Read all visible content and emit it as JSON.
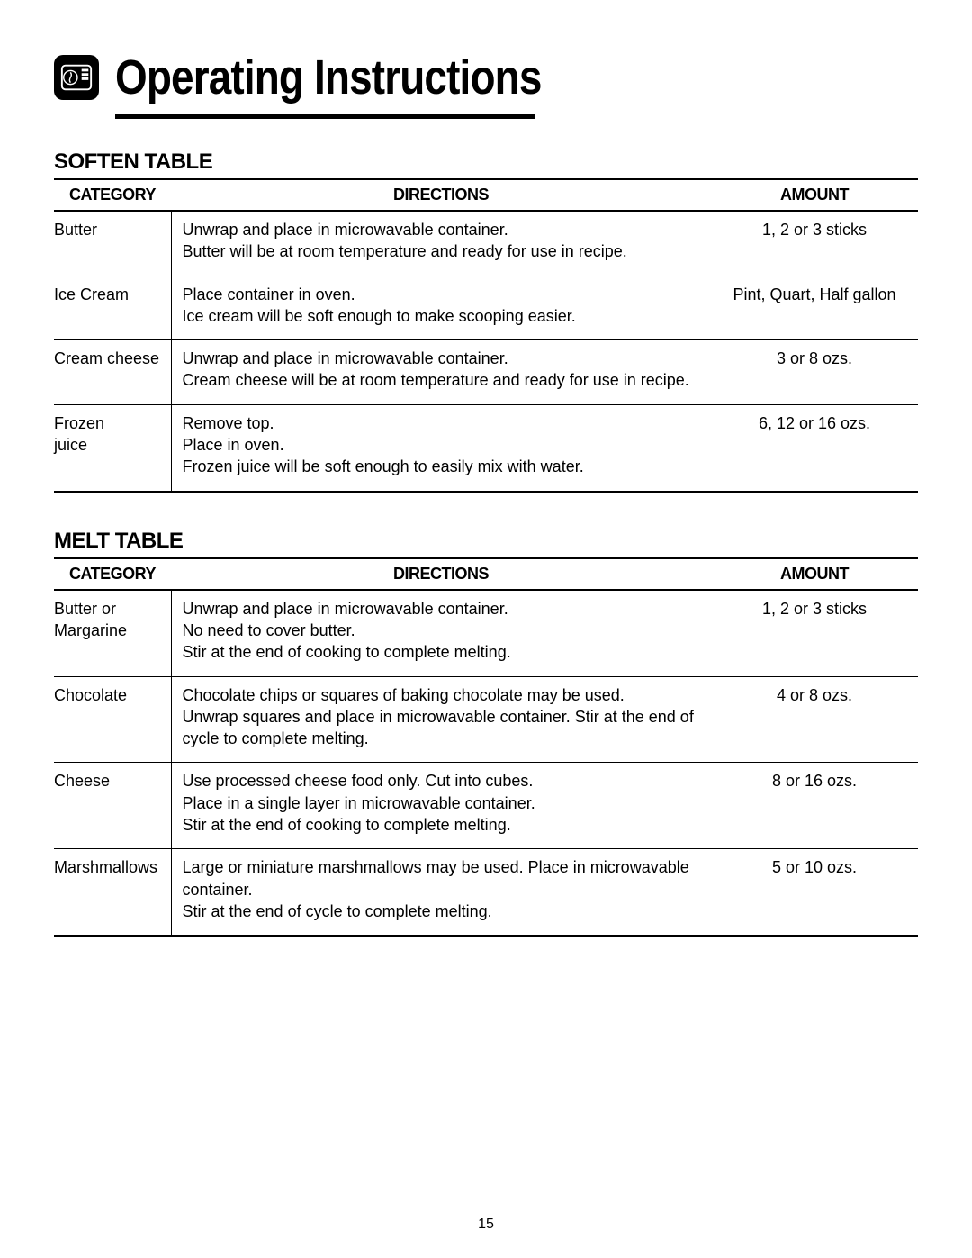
{
  "header": {
    "title": "Operating Instructions"
  },
  "soften_table": {
    "title": "SOFTEN TABLE",
    "columns": [
      "CATEGORY",
      "DIRECTIONS",
      "AMOUNT"
    ],
    "rows": [
      {
        "category": "Butter",
        "directions": "Unwrap and place in microwavable container.\nButter will be at room temperature and ready for use in recipe.",
        "amount": "1, 2 or 3 sticks"
      },
      {
        "category": "Ice Cream",
        "directions": "Place container in oven.\nIce cream will be soft enough to make scooping easier.",
        "amount": "Pint, Quart, Half gallon"
      },
      {
        "category": "Cream cheese",
        "directions": "Unwrap and place in microwavable container.\nCream cheese will be at room temperature and ready for use in recipe.",
        "amount": "3 or 8 ozs."
      },
      {
        "category": "Frozen\njuice",
        "directions": "Remove top.\nPlace in oven.\nFrozen juice will be soft enough to easily mix with water.",
        "amount": "6, 12 or 16 ozs."
      }
    ]
  },
  "melt_table": {
    "title": "MELT TABLE",
    "columns": [
      "CATEGORY",
      "DIRECTIONS",
      "AMOUNT"
    ],
    "rows": [
      {
        "category": "Butter or\nMargarine",
        "directions": "Unwrap and place in microwavable container.\nNo need to cover butter.\nStir at the end of cooking to complete melting.",
        "amount": "1, 2 or 3 sticks"
      },
      {
        "category": "Chocolate",
        "directions": "Chocolate chips or squares of baking chocolate may be used.\nUnwrap squares and place in microwavable container. Stir at the end of cycle to complete melting.",
        "amount": "4 or 8 ozs."
      },
      {
        "category": "Cheese",
        "directions": "Use processed cheese food only. Cut into cubes.\nPlace in a single layer in microwavable container.\nStir at the end of cooking to complete melting.",
        "amount": "8 or 16 ozs."
      },
      {
        "category": "Marshmallows",
        "directions": "Large or miniature marshmallows may be used. Place in microwavable container.\nStir at the end of cycle to complete melting.",
        "amount": "5 or 10 ozs."
      }
    ]
  },
  "page_number": "15"
}
